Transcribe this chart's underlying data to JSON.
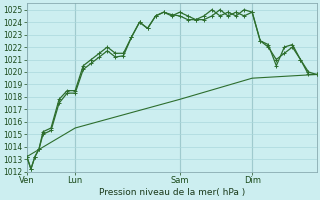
{
  "xlabel": "Pression niveau de la mer( hPa )",
  "ylim": [
    1012,
    1025.5
  ],
  "ytick_vals": [
    1012,
    1013,
    1014,
    1015,
    1016,
    1017,
    1018,
    1019,
    1020,
    1021,
    1022,
    1023,
    1024,
    1025
  ],
  "bg_color": "#cceef0",
  "grid_color": "#aad8dc",
  "line_color": "#2d6e2d",
  "xtick_labels": [
    "Ven",
    "Lun",
    "Sam",
    "Dim"
  ],
  "xtick_positions": [
    0,
    6,
    19,
    28
  ],
  "vline_positions": [
    0,
    6,
    19,
    28
  ],
  "xlim": [
    0,
    36
  ],
  "line1_x": [
    0,
    0.5,
    1,
    1.5,
    2,
    3,
    4,
    5,
    6,
    7,
    8,
    9,
    10,
    11,
    12,
    13,
    14,
    15,
    16,
    17,
    18,
    19,
    20,
    21,
    22,
    23,
    24,
    25,
    26,
    27,
    28,
    29,
    30,
    31,
    32,
    33,
    34,
    35,
    36
  ],
  "line1_y": [
    1013.2,
    1012.2,
    1013.2,
    1013.8,
    1015.2,
    1015.5,
    1017.8,
    1018.5,
    1018.5,
    1020.5,
    1021.0,
    1021.5,
    1022.0,
    1021.5,
    1021.5,
    1022.8,
    1024.0,
    1023.5,
    1024.5,
    1024.8,
    1024.5,
    1024.8,
    1024.5,
    1024.2,
    1024.2,
    1024.5,
    1025.0,
    1024.5,
    1024.8,
    1024.5,
    1024.8,
    1022.5,
    1022.2,
    1020.5,
    1022.0,
    1022.2,
    1021.0,
    1019.8,
    1019.8
  ],
  "line2_x": [
    0,
    0.5,
    1,
    1.5,
    2,
    3,
    4,
    5,
    6,
    7,
    8,
    9,
    10,
    11,
    12,
    13,
    14,
    15,
    16,
    17,
    18,
    19,
    20,
    21,
    22,
    23,
    24,
    25,
    26,
    27,
    28,
    29,
    30,
    31,
    32,
    33,
    34,
    35,
    36
  ],
  "line2_y": [
    1013.2,
    1012.2,
    1013.2,
    1013.8,
    1015.0,
    1015.3,
    1017.5,
    1018.3,
    1018.3,
    1020.2,
    1020.7,
    1021.2,
    1021.7,
    1021.2,
    1021.3,
    1022.8,
    1024.0,
    1023.5,
    1024.5,
    1024.8,
    1024.6,
    1024.5,
    1024.2,
    1024.2,
    1024.5,
    1025.0,
    1024.5,
    1024.8,
    1024.5,
    1025.0,
    1024.8,
    1022.5,
    1022.0,
    1021.0,
    1021.5,
    1022.0,
    1021.0,
    1020.0,
    1019.8
  ],
  "line3_x": [
    0,
    6,
    19,
    28,
    36
  ],
  "line3_y": [
    1013.2,
    1015.5,
    1017.8,
    1019.5,
    1019.8
  ]
}
